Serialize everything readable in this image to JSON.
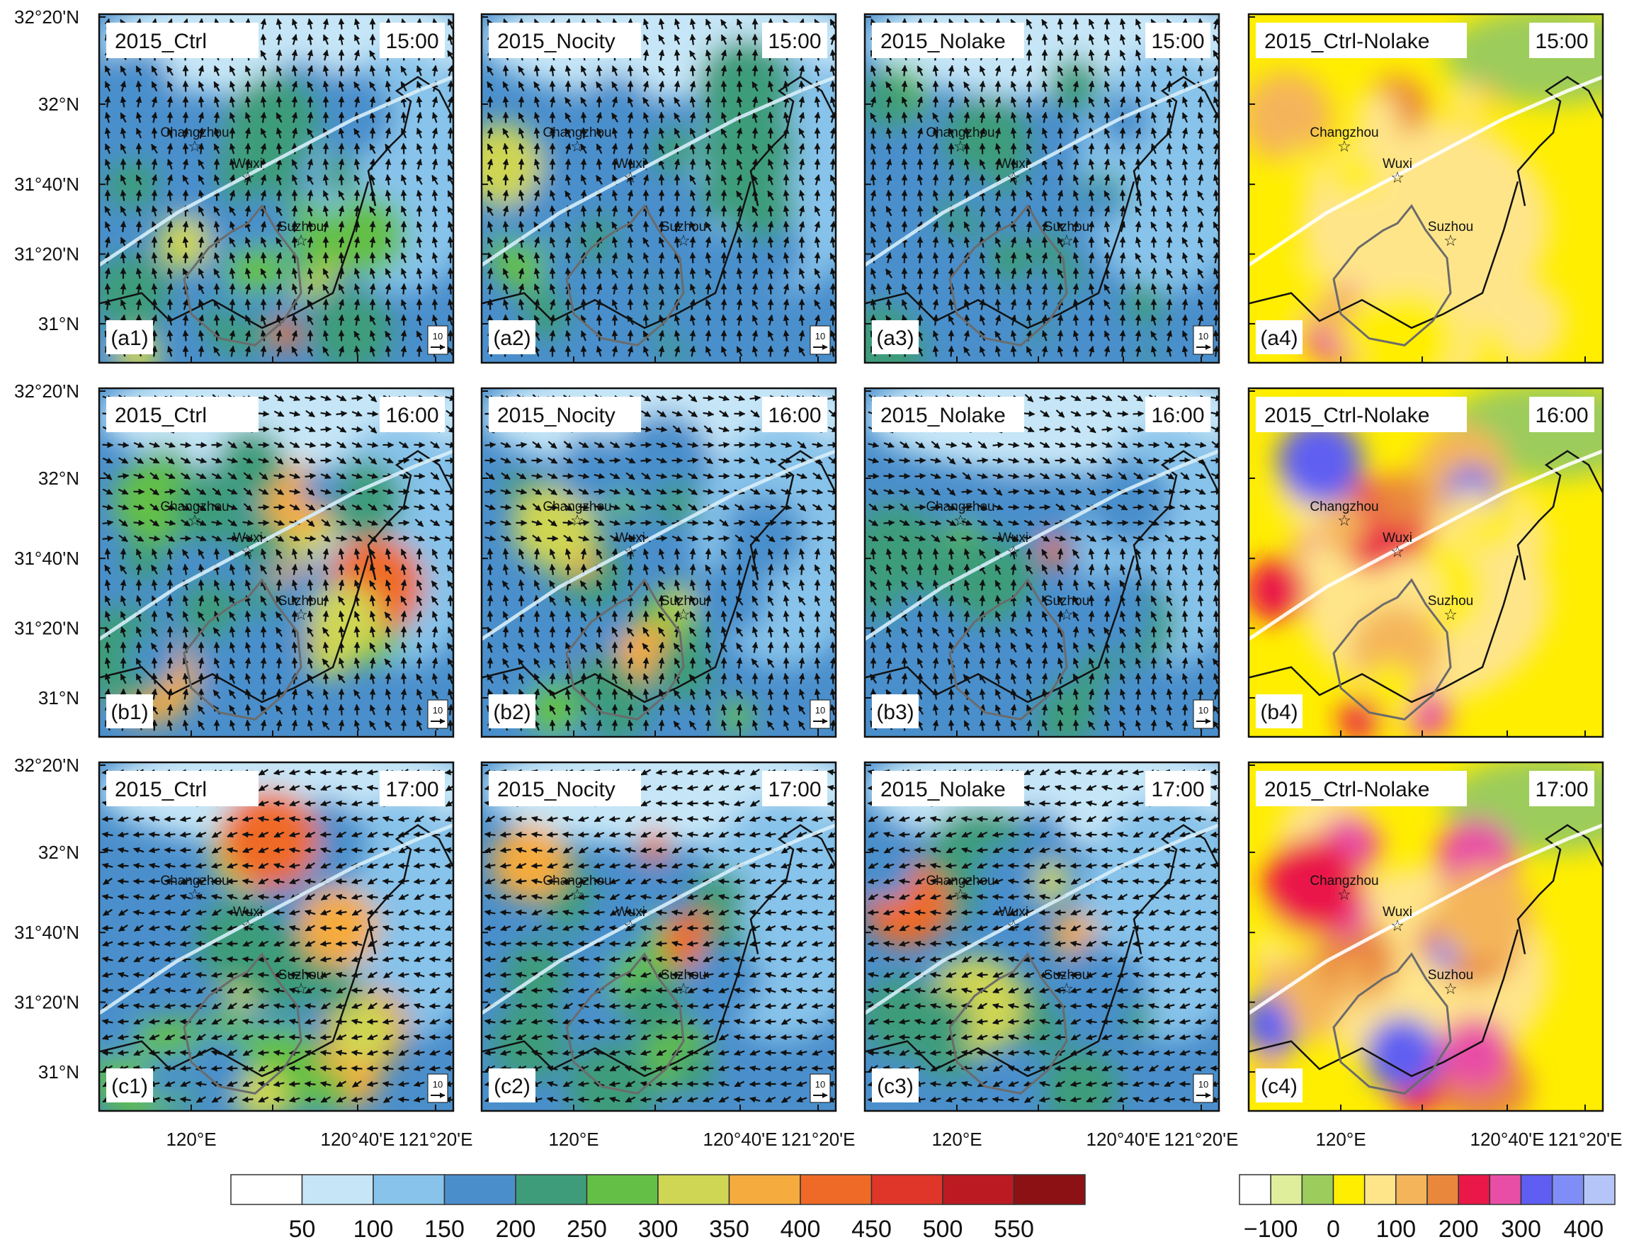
{
  "figure": {
    "lat_labels": [
      "32°20'N",
      "32°N",
      "31°40'N",
      "31°20'N",
      "31°N"
    ],
    "lon_labels": [
      "120°E",
      "120°40'E",
      "121°20'E"
    ],
    "vector_ref": "10",
    "rows": [
      {
        "time": "15:00",
        "panels": [
          {
            "id": "(a1)",
            "title": "2015_Ctrl",
            "type": "field",
            "level": 0.45
          },
          {
            "id": "(a2)",
            "title": "2015_Nocity",
            "type": "field",
            "level": 0.35
          },
          {
            "id": "(a3)",
            "title": "2015_Nolake",
            "type": "field",
            "level": 0.2
          },
          {
            "id": "(a4)",
            "title": "2015_Ctrl-Nolake",
            "type": "diff",
            "level": 0.3
          }
        ]
      },
      {
        "time": "16:00",
        "panels": [
          {
            "id": "(b1)",
            "title": "2015_Ctrl",
            "type": "field",
            "level": 0.65
          },
          {
            "id": "(b2)",
            "title": "2015_Nocity",
            "type": "field",
            "level": 0.55
          },
          {
            "id": "(b3)",
            "title": "2015_Nolake",
            "type": "field",
            "level": 0.35
          },
          {
            "id": "(b4)",
            "title": "2015_Ctrl-Nolake",
            "type": "diff",
            "level": 0.55
          }
        ]
      },
      {
        "time": "17:00",
        "panels": [
          {
            "id": "(c1)",
            "title": "2015_Ctrl",
            "type": "field",
            "level": 0.6
          },
          {
            "id": "(c2)",
            "title": "2015_Nocity",
            "type": "field",
            "level": 0.4
          },
          {
            "id": "(c3)",
            "title": "2015_Nolake",
            "type": "field",
            "level": 0.25
          },
          {
            "id": "(c4)",
            "title": "2015_Ctrl-Nolake",
            "type": "diff",
            "level": 0.7
          }
        ]
      }
    ],
    "cities": [
      "Changzhou",
      "Wuxi",
      "Suzhou"
    ]
  },
  "colorbar_main": {
    "colors": [
      "#ffffff",
      "#c6e6f7",
      "#87c3ea",
      "#4a8fcc",
      "#3e9c7a",
      "#64bf47",
      "#cfd653",
      "#f5ab3e",
      "#ef6a26",
      "#e0362a",
      "#bb1a22",
      "#8c1115"
    ],
    "labels": [
      "50",
      "100",
      "150",
      "200",
      "250",
      "300",
      "350",
      "400",
      "450",
      "500",
      "550"
    ]
  },
  "colorbar_diff": {
    "colors": [
      "#ffffff",
      "#dfee9a",
      "#9ccc5c",
      "#ffee00",
      "#ffe58a",
      "#f4b55a",
      "#e9873c",
      "#ea1848",
      "#e84ea6",
      "#5e5ef2",
      "#7f8ef6",
      "#b6c5f8"
    ],
    "labels": [
      "−100",
      "0",
      "100",
      "200",
      "300",
      "400"
    ]
  }
}
